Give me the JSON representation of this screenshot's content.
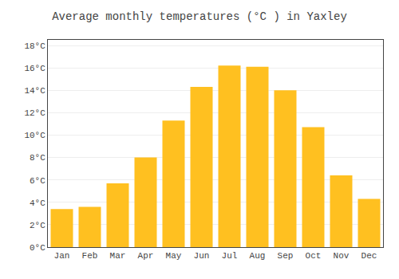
{
  "chart_data": {
    "type": "bar",
    "title": "Average monthly temperatures (°C ) in Yaxley",
    "categories": [
      "Jan",
      "Feb",
      "Mar",
      "Apr",
      "May",
      "Jun",
      "Jul",
      "Aug",
      "Sep",
      "Oct",
      "Nov",
      "Dec"
    ],
    "values": [
      3.4,
      3.6,
      5.7,
      8.0,
      11.3,
      14.3,
      16.2,
      16.1,
      14.0,
      10.7,
      6.4,
      4.3
    ],
    "color": "#FFC020",
    "ylim": [
      0,
      18.5
    ],
    "yticks": [
      {
        "value": 0,
        "label": "0°C"
      },
      {
        "value": 2,
        "label": "2°C"
      },
      {
        "value": 4,
        "label": "4°C"
      },
      {
        "value": 6,
        "label": "6°C"
      },
      {
        "value": 8,
        "label": "8°C"
      },
      {
        "value": 10,
        "label": "10°C"
      },
      {
        "value": 12,
        "label": "12°C"
      },
      {
        "value": 14,
        "label": "14°C"
      },
      {
        "value": 16,
        "label": "16°C"
      },
      {
        "value": 18,
        "label": "18°C"
      }
    ],
    "grid": true
  }
}
